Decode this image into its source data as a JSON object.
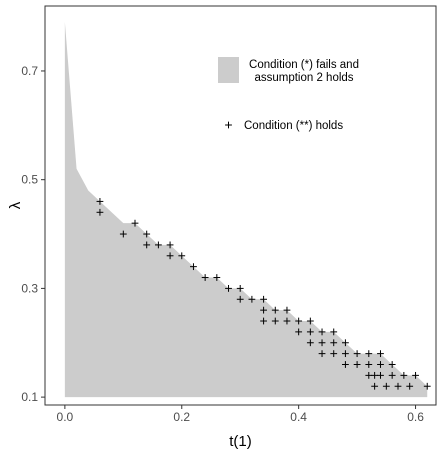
{
  "chart_data": {
    "type": "area",
    "title": "",
    "xlabel": "t(1)",
    "ylabel": "λ",
    "xlim": [
      -0.034,
      0.635
    ],
    "ylim": [
      0.0855,
      0.8195
    ],
    "xticks": [
      0.0,
      0.2,
      0.4,
      0.6
    ],
    "xtick_labels": [
      "0.0",
      "0.2",
      "0.4",
      "0.6"
    ],
    "yticks": [
      0.1,
      0.3,
      0.5,
      0.7
    ],
    "ytick_labels": [
      "0.1",
      "0.3",
      "0.5",
      "0.7"
    ],
    "grid": false,
    "legend_position": "top-right",
    "colors": {
      "region_fill": "#cccccc",
      "points": "#000000",
      "panel_border": "#333333"
    },
    "region": {
      "name": "Condition (*) fails and assumption 2 holds",
      "upper_boundary": [
        {
          "x": 0.0,
          "y": 0.79
        },
        {
          "x": 0.02,
          "y": 0.52
        },
        {
          "x": 0.04,
          "y": 0.48
        },
        {
          "x": 0.06,
          "y": 0.46
        },
        {
          "x": 0.08,
          "y": 0.44
        },
        {
          "x": 0.1,
          "y": 0.42
        },
        {
          "x": 0.12,
          "y": 0.42
        },
        {
          "x": 0.14,
          "y": 0.4
        },
        {
          "x": 0.16,
          "y": 0.38
        },
        {
          "x": 0.18,
          "y": 0.38
        },
        {
          "x": 0.2,
          "y": 0.36
        },
        {
          "x": 0.22,
          "y": 0.34
        },
        {
          "x": 0.24,
          "y": 0.32
        },
        {
          "x": 0.26,
          "y": 0.32
        },
        {
          "x": 0.28,
          "y": 0.3
        },
        {
          "x": 0.3,
          "y": 0.3
        },
        {
          "x": 0.32,
          "y": 0.28
        },
        {
          "x": 0.34,
          "y": 0.28
        },
        {
          "x": 0.36,
          "y": 0.26
        },
        {
          "x": 0.38,
          "y": 0.26
        },
        {
          "x": 0.4,
          "y": 0.24
        },
        {
          "x": 0.42,
          "y": 0.24
        },
        {
          "x": 0.44,
          "y": 0.22
        },
        {
          "x": 0.46,
          "y": 0.22
        },
        {
          "x": 0.48,
          "y": 0.2
        },
        {
          "x": 0.5,
          "y": 0.18
        },
        {
          "x": 0.52,
          "y": 0.18
        },
        {
          "x": 0.54,
          "y": 0.18
        },
        {
          "x": 0.56,
          "y": 0.16
        },
        {
          "x": 0.58,
          "y": 0.14
        },
        {
          "x": 0.6,
          "y": 0.14
        },
        {
          "x": 0.62,
          "y": 0.12
        },
        {
          "x": 0.62,
          "y": 0.1
        }
      ],
      "baseline": 0.1
    },
    "points_series": {
      "name": "Condition (**) holds",
      "marker": "+",
      "points": [
        {
          "x": 0.06,
          "y": 0.46
        },
        {
          "x": 0.06,
          "y": 0.44
        },
        {
          "x": 0.1,
          "y": 0.4
        },
        {
          "x": 0.12,
          "y": 0.42
        },
        {
          "x": 0.14,
          "y": 0.4
        },
        {
          "x": 0.14,
          "y": 0.38
        },
        {
          "x": 0.16,
          "y": 0.38
        },
        {
          "x": 0.18,
          "y": 0.38
        },
        {
          "x": 0.18,
          "y": 0.36
        },
        {
          "x": 0.2,
          "y": 0.36
        },
        {
          "x": 0.22,
          "y": 0.34
        },
        {
          "x": 0.24,
          "y": 0.32
        },
        {
          "x": 0.26,
          "y": 0.32
        },
        {
          "x": 0.28,
          "y": 0.3
        },
        {
          "x": 0.3,
          "y": 0.3
        },
        {
          "x": 0.3,
          "y": 0.28
        },
        {
          "x": 0.32,
          "y": 0.28
        },
        {
          "x": 0.34,
          "y": 0.28
        },
        {
          "x": 0.34,
          "y": 0.26
        },
        {
          "x": 0.34,
          "y": 0.24
        },
        {
          "x": 0.36,
          "y": 0.26
        },
        {
          "x": 0.36,
          "y": 0.24
        },
        {
          "x": 0.38,
          "y": 0.26
        },
        {
          "x": 0.38,
          "y": 0.24
        },
        {
          "x": 0.4,
          "y": 0.24
        },
        {
          "x": 0.4,
          "y": 0.22
        },
        {
          "x": 0.42,
          "y": 0.24
        },
        {
          "x": 0.42,
          "y": 0.22
        },
        {
          "x": 0.42,
          "y": 0.2
        },
        {
          "x": 0.44,
          "y": 0.22
        },
        {
          "x": 0.44,
          "y": 0.2
        },
        {
          "x": 0.44,
          "y": 0.18
        },
        {
          "x": 0.46,
          "y": 0.22
        },
        {
          "x": 0.46,
          "y": 0.2
        },
        {
          "x": 0.46,
          "y": 0.18
        },
        {
          "x": 0.48,
          "y": 0.2
        },
        {
          "x": 0.48,
          "y": 0.18
        },
        {
          "x": 0.48,
          "y": 0.16
        },
        {
          "x": 0.5,
          "y": 0.18
        },
        {
          "x": 0.5,
          "y": 0.16
        },
        {
          "x": 0.52,
          "y": 0.18
        },
        {
          "x": 0.52,
          "y": 0.16
        },
        {
          "x": 0.52,
          "y": 0.14
        },
        {
          "x": 0.53,
          "y": 0.14
        },
        {
          "x": 0.53,
          "y": 0.12
        },
        {
          "x": 0.54,
          "y": 0.18
        },
        {
          "x": 0.54,
          "y": 0.16
        },
        {
          "x": 0.54,
          "y": 0.14
        },
        {
          "x": 0.55,
          "y": 0.12
        },
        {
          "x": 0.56,
          "y": 0.16
        },
        {
          "x": 0.56,
          "y": 0.14
        },
        {
          "x": 0.57,
          "y": 0.12
        },
        {
          "x": 0.58,
          "y": 0.14
        },
        {
          "x": 0.59,
          "y": 0.12
        },
        {
          "x": 0.6,
          "y": 0.14
        },
        {
          "x": 0.62,
          "y": 0.12
        }
      ]
    },
    "legend": [
      {
        "kind": "swatch",
        "lines": [
          "Condition (*) fails and",
          "assumption 2 holds"
        ]
      },
      {
        "kind": "marker",
        "marker": "+",
        "lines": [
          "Condition (**) holds"
        ]
      }
    ]
  }
}
